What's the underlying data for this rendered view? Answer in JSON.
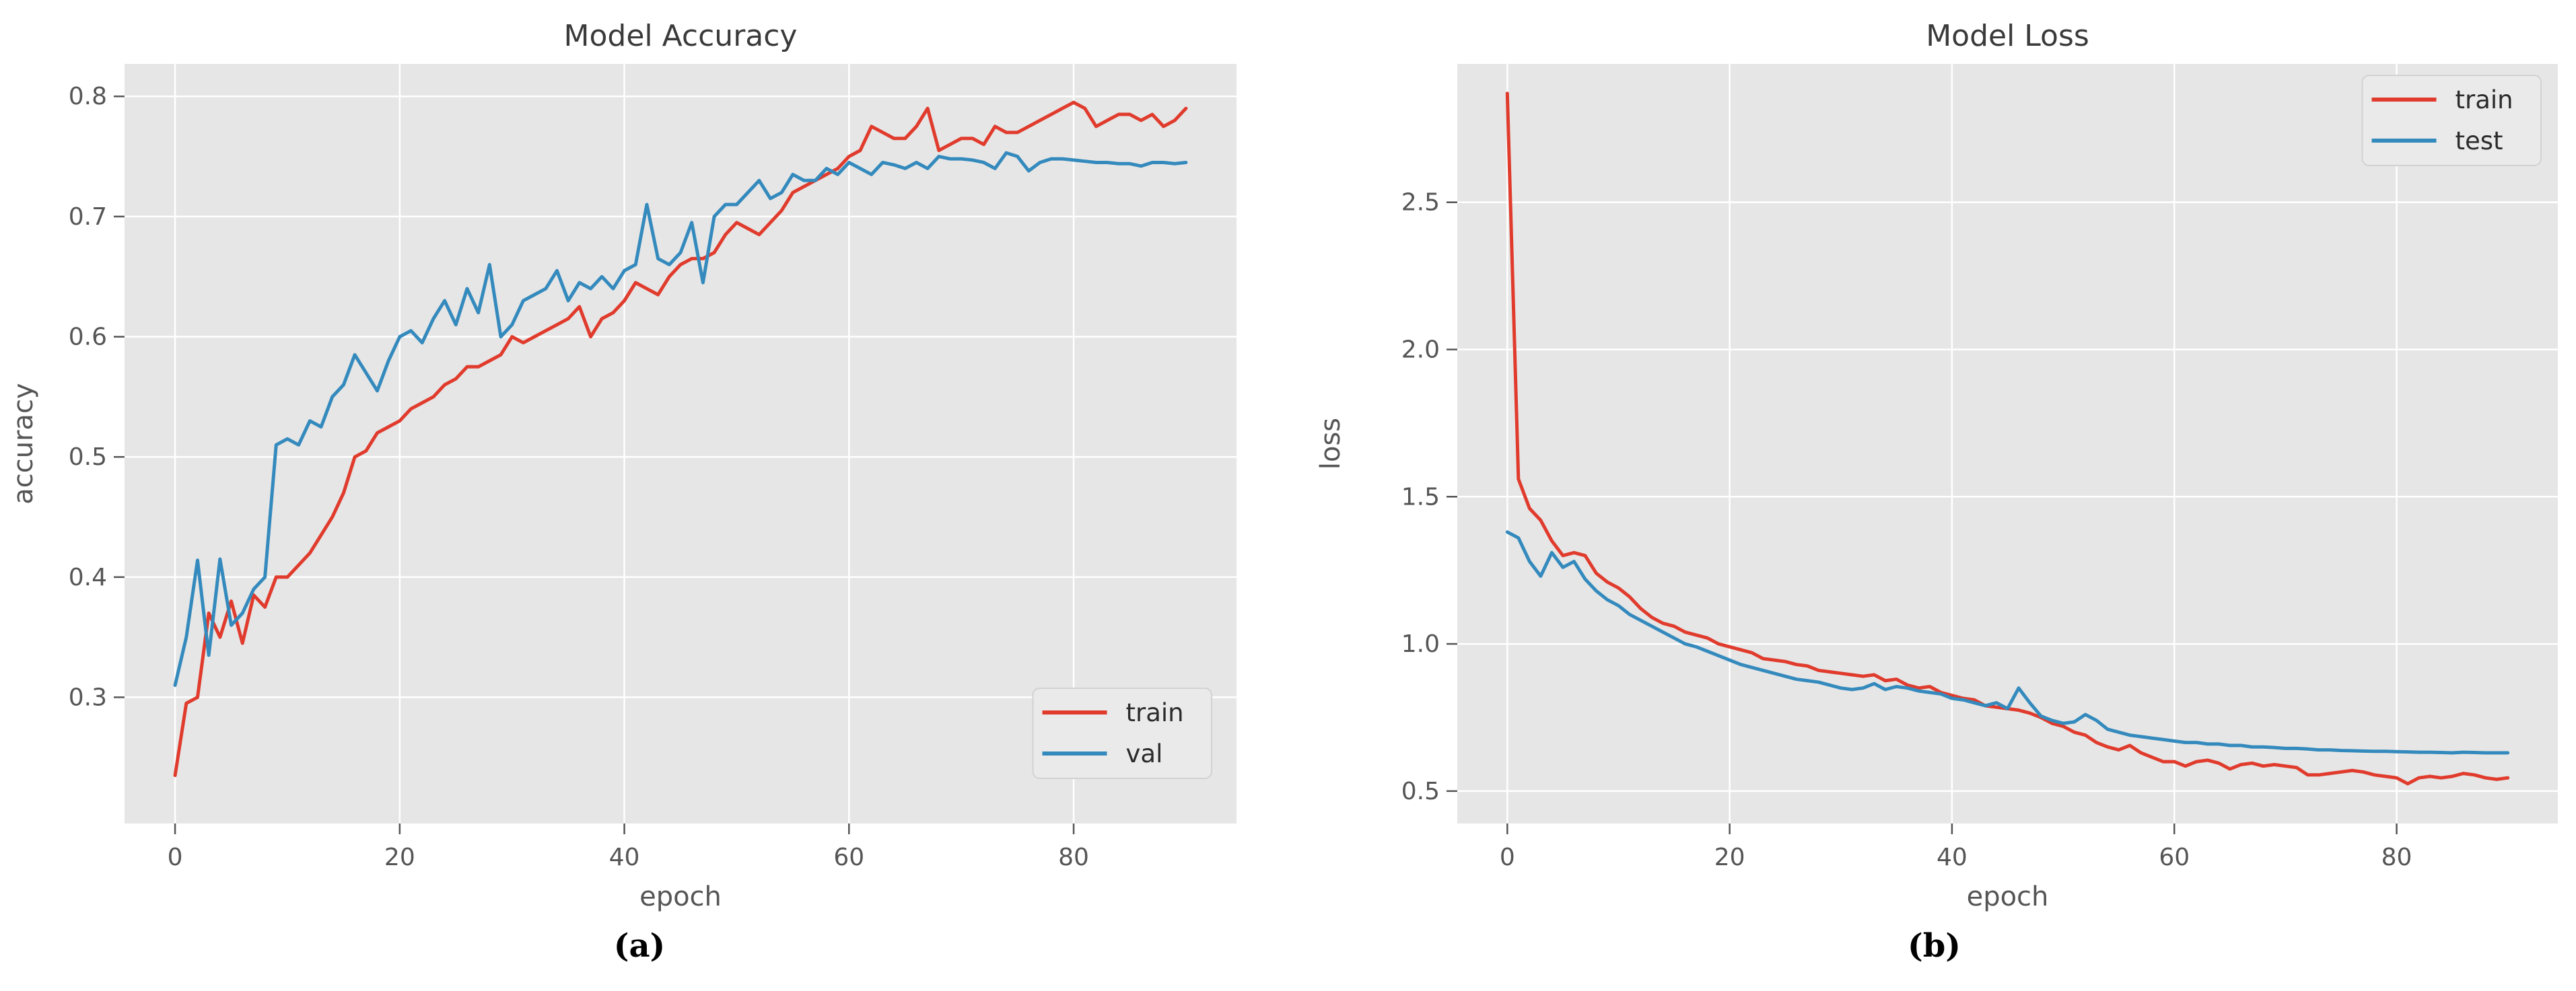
{
  "styles": {
    "plot_background": "#e6e6e6",
    "grid_color": "#ffffff",
    "tick_color": "#555555",
    "label_color": "#555555",
    "title_color": "#3a3a3a",
    "legend_background": "#eaeaea",
    "legend_border": "#d2d2d2",
    "legend_text_color": "#2b2b2b",
    "train_color": "#e03b2c",
    "val_color": "#348abd"
  },
  "chart_data": [
    {
      "type": "line",
      "title": "Model Accuracy",
      "xlabel": "epoch",
      "ylabel": "accuracy",
      "caption": "(a)",
      "xlim": [
        -4.5,
        94.5
      ],
      "ylim": [
        0.195,
        0.827
      ],
      "xtick_values": [
        0,
        20,
        40,
        60,
        80
      ],
      "xtick_labels": [
        "0",
        "20",
        "40",
        "60",
        "80"
      ],
      "ytick_values": [
        0.3,
        0.4,
        0.5,
        0.6,
        0.7,
        0.8
      ],
      "ytick_labels": [
        "0.3",
        "0.4",
        "0.5",
        "0.6",
        "0.7",
        "0.8"
      ],
      "grid": true,
      "legend_position": "lower right",
      "x_start": 0,
      "x_step": 1,
      "series": [
        {
          "name": "train",
          "color": "#e03b2c",
          "values": [
            0.235,
            0.295,
            0.3,
            0.37,
            0.35,
            0.38,
            0.345,
            0.385,
            0.375,
            0.4,
            0.4,
            0.41,
            0.42,
            0.435,
            0.45,
            0.47,
            0.5,
            0.505,
            0.52,
            0.525,
            0.53,
            0.54,
            0.545,
            0.55,
            0.56,
            0.565,
            0.575,
            0.575,
            0.58,
            0.585,
            0.6,
            0.595,
            0.6,
            0.605,
            0.61,
            0.615,
            0.625,
            0.6,
            0.615,
            0.62,
            0.63,
            0.645,
            0.64,
            0.635,
            0.65,
            0.66,
            0.665,
            0.665,
            0.67,
            0.685,
            0.695,
            0.69,
            0.685,
            0.695,
            0.705,
            0.72,
            0.725,
            0.73,
            0.735,
            0.74,
            0.75,
            0.755,
            0.775,
            0.77,
            0.765,
            0.765,
            0.775,
            0.79,
            0.755,
            0.76,
            0.765,
            0.765,
            0.76,
            0.775,
            0.77,
            0.77,
            0.775,
            0.78,
            0.785,
            0.79,
            0.795,
            0.79,
            0.775,
            0.78,
            0.785,
            0.785,
            0.78,
            0.785,
            0.775,
            0.78,
            0.79
          ]
        },
        {
          "name": "val",
          "color": "#348abd",
          "values": [
            0.31,
            0.35,
            0.414,
            0.335,
            0.415,
            0.36,
            0.37,
            0.39,
            0.4,
            0.51,
            0.515,
            0.51,
            0.53,
            0.525,
            0.55,
            0.56,
            0.585,
            0.57,
            0.555,
            0.58,
            0.6,
            0.605,
            0.595,
            0.615,
            0.63,
            0.61,
            0.64,
            0.62,
            0.66,
            0.6,
            0.61,
            0.63,
            0.635,
            0.64,
            0.655,
            0.63,
            0.645,
            0.64,
            0.65,
            0.64,
            0.655,
            0.66,
            0.71,
            0.665,
            0.66,
            0.67,
            0.695,
            0.645,
            0.7,
            0.71,
            0.71,
            0.72,
            0.73,
            0.715,
            0.72,
            0.735,
            0.73,
            0.73,
            0.74,
            0.735,
            0.745,
            0.74,
            0.735,
            0.745,
            0.743,
            0.74,
            0.745,
            0.74,
            0.75,
            0.748,
            0.748,
            0.747,
            0.745,
            0.74,
            0.753,
            0.75,
            0.738,
            0.745,
            0.748,
            0.748,
            0.747,
            0.746,
            0.745,
            0.745,
            0.744,
            0.744,
            0.742,
            0.745,
            0.745,
            0.744,
            0.745
          ]
        }
      ]
    },
    {
      "type": "line",
      "title": "Model Loss",
      "xlabel": "epoch",
      "ylabel": "loss",
      "caption": "(b)",
      "xlim": [
        -4.5,
        94.5
      ],
      "ylim": [
        0.39,
        2.97
      ],
      "xtick_values": [
        0,
        20,
        40,
        60,
        80
      ],
      "xtick_labels": [
        "0",
        "20",
        "40",
        "60",
        "80"
      ],
      "ytick_values": [
        0.5,
        1.0,
        1.5,
        2.0,
        2.5
      ],
      "ytick_labels": [
        "0.5",
        "1.0",
        "1.5",
        "2.0",
        "2.5"
      ],
      "grid": true,
      "legend_position": "upper right",
      "x_start": 0,
      "x_step": 1,
      "series": [
        {
          "name": "train",
          "color": "#e03b2c",
          "values": [
            2.87,
            1.56,
            1.46,
            1.42,
            1.35,
            1.3,
            1.31,
            1.3,
            1.24,
            1.21,
            1.19,
            1.16,
            1.12,
            1.09,
            1.07,
            1.06,
            1.04,
            1.03,
            1.02,
            1.0,
            0.99,
            0.98,
            0.97,
            0.95,
            0.945,
            0.94,
            0.93,
            0.925,
            0.91,
            0.905,
            0.9,
            0.895,
            0.89,
            0.895,
            0.875,
            0.88,
            0.86,
            0.85,
            0.855,
            0.835,
            0.825,
            0.815,
            0.81,
            0.79,
            0.785,
            0.78,
            0.775,
            0.765,
            0.75,
            0.73,
            0.72,
            0.7,
            0.69,
            0.665,
            0.65,
            0.64,
            0.655,
            0.63,
            0.615,
            0.6,
            0.6,
            0.585,
            0.6,
            0.605,
            0.595,
            0.575,
            0.59,
            0.595,
            0.585,
            0.59,
            0.585,
            0.58,
            0.555,
            0.555,
            0.56,
            0.565,
            0.57,
            0.565,
            0.555,
            0.55,
            0.545,
            0.525,
            0.545,
            0.55,
            0.545,
            0.55,
            0.56,
            0.555,
            0.545,
            0.54,
            0.545
          ]
        },
        {
          "name": "test",
          "color": "#348abd",
          "values": [
            1.38,
            1.36,
            1.28,
            1.23,
            1.31,
            1.26,
            1.28,
            1.22,
            1.18,
            1.15,
            1.13,
            1.1,
            1.08,
            1.06,
            1.04,
            1.02,
            1.0,
            0.99,
            0.975,
            0.96,
            0.945,
            0.93,
            0.92,
            0.91,
            0.9,
            0.89,
            0.88,
            0.875,
            0.87,
            0.86,
            0.85,
            0.845,
            0.85,
            0.865,
            0.845,
            0.855,
            0.85,
            0.84,
            0.835,
            0.83,
            0.815,
            0.81,
            0.8,
            0.79,
            0.8,
            0.78,
            0.85,
            0.8,
            0.755,
            0.74,
            0.73,
            0.735,
            0.76,
            0.74,
            0.71,
            0.7,
            0.69,
            0.685,
            0.68,
            0.675,
            0.67,
            0.665,
            0.665,
            0.66,
            0.66,
            0.655,
            0.655,
            0.65,
            0.65,
            0.648,
            0.645,
            0.645,
            0.643,
            0.64,
            0.64,
            0.638,
            0.637,
            0.636,
            0.635,
            0.635,
            0.634,
            0.633,
            0.632,
            0.632,
            0.631,
            0.63,
            0.632,
            0.631,
            0.63,
            0.63,
            0.63
          ]
        }
      ]
    }
  ]
}
